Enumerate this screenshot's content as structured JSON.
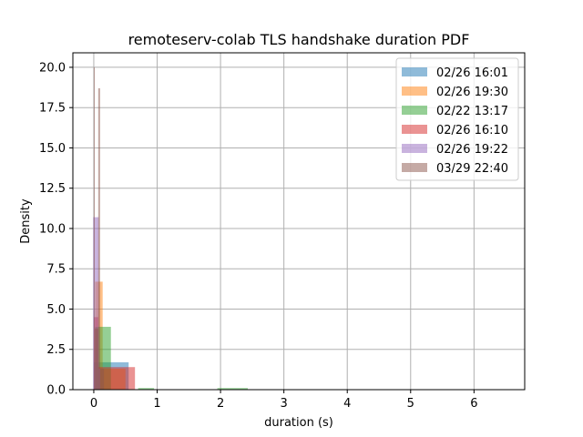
{
  "chart_data": {
    "type": "histogram",
    "title": "remoteserv-colab TLS handshake duration PDF",
    "xlabel": "duration (s)",
    "ylabel": "Density",
    "xlim": [
      -0.33,
      6.8
    ],
    "ylim": [
      0,
      20.9
    ],
    "xticks": [
      0,
      1,
      2,
      3,
      4,
      5,
      6
    ],
    "yticks": [
      0.0,
      2.5,
      5.0,
      7.5,
      10.0,
      12.5,
      15.0,
      17.5,
      20.0
    ],
    "grid": true,
    "legend_position": "top-right",
    "alpha": 0.5,
    "series": [
      {
        "name": "02/26 16:01",
        "color": "#1f77b4",
        "bins": [
          [
            0.0,
            0.55,
            1.7
          ],
          [
            3.1,
            3.85,
            0.02
          ],
          [
            4.95,
            5.48,
            0.02
          ]
        ]
      },
      {
        "name": "02/26 19:30",
        "color": "#ff7f0e",
        "bins": [
          [
            0.02,
            0.14,
            6.7
          ],
          [
            0.14,
            0.5,
            1.3
          ]
        ]
      },
      {
        "name": "02/22 13:17",
        "color": "#2ca02c",
        "bins": [
          [
            0.02,
            0.27,
            3.9
          ],
          [
            0.7,
            0.95,
            0.1
          ],
          [
            1.95,
            2.43,
            0.1
          ]
        ]
      },
      {
        "name": "02/26 16:10",
        "color": "#d62728",
        "bins": [
          [
            0.0,
            0.07,
            4.5
          ],
          [
            0.07,
            0.65,
            1.4
          ],
          [
            1.3,
            2.4,
            0.02
          ],
          [
            2.6,
            3.25,
            0.02
          ],
          [
            5.85,
            6.45,
            0.02
          ]
        ]
      },
      {
        "name": "02/26 19:22",
        "color": "#9467bd",
        "bins": [
          [
            -0.01,
            0.08,
            10.7
          ],
          [
            0.08,
            0.1,
            1.3
          ]
        ]
      },
      {
        "name": "03/29 22:40",
        "color": "#8c564b",
        "bins": [
          [
            0.0,
            0.015,
            20.0
          ],
          [
            0.015,
            0.07,
            3.8
          ],
          [
            0.07,
            0.1,
            18.7
          ],
          [
            0.1,
            0.16,
            1.3
          ]
        ]
      }
    ]
  }
}
